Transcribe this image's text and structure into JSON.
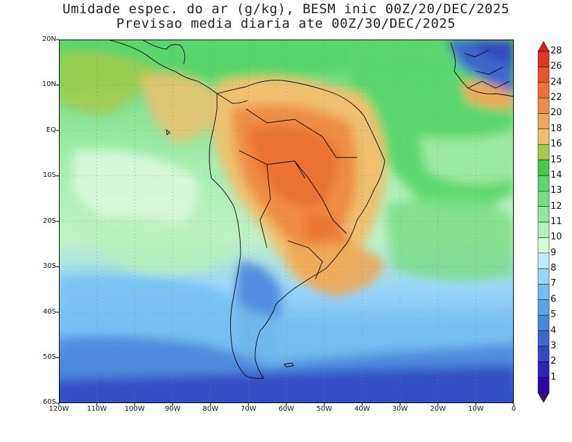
{
  "title": {
    "line1": "Umidade espec. do ar (g/kg), BESM inic 00Z/20/DEC/2025",
    "line2": "Previsao media diaria ate 00Z/30/DEC/2025"
  },
  "map": {
    "lon_range": [
      -120,
      0
    ],
    "lat_range": [
      -60,
      20
    ],
    "lat_labels": [
      "20N",
      "10N",
      "EQ",
      "10S",
      "20S",
      "30S",
      "40S",
      "50S",
      "60S"
    ],
    "lon_labels": [
      "120W",
      "110W",
      "100W",
      "90W",
      "80W",
      "70W",
      "60W",
      "50W",
      "40W",
      "30W",
      "20W",
      "10W",
      "0"
    ],
    "gridlines": "dotted"
  },
  "colorbar": {
    "levels": [
      "1",
      "2",
      "3",
      "4",
      "5",
      "6",
      "7",
      "8",
      "9",
      "10",
      "11",
      "12",
      "13",
      "14",
      "15",
      "16",
      "18",
      "20",
      "22",
      "24",
      "26",
      "28"
    ],
    "colors": [
      "#2a0aa0",
      "#2e27b8",
      "#3349c2",
      "#3e66cc",
      "#4a86dc",
      "#5aa3e8",
      "#74bff2",
      "#9ad6f8",
      "#bfeafc",
      "#d8f8da",
      "#b5f0b8",
      "#93e7a0",
      "#75dd84",
      "#59d66c",
      "#46c94e",
      "#a6c94a",
      "#eec070",
      "#efa85a",
      "#ee8e44",
      "#eb7230",
      "#e8552a",
      "#df3822"
    ],
    "low_color": "#3a0b8a",
    "high_color": "#e02020"
  }
}
